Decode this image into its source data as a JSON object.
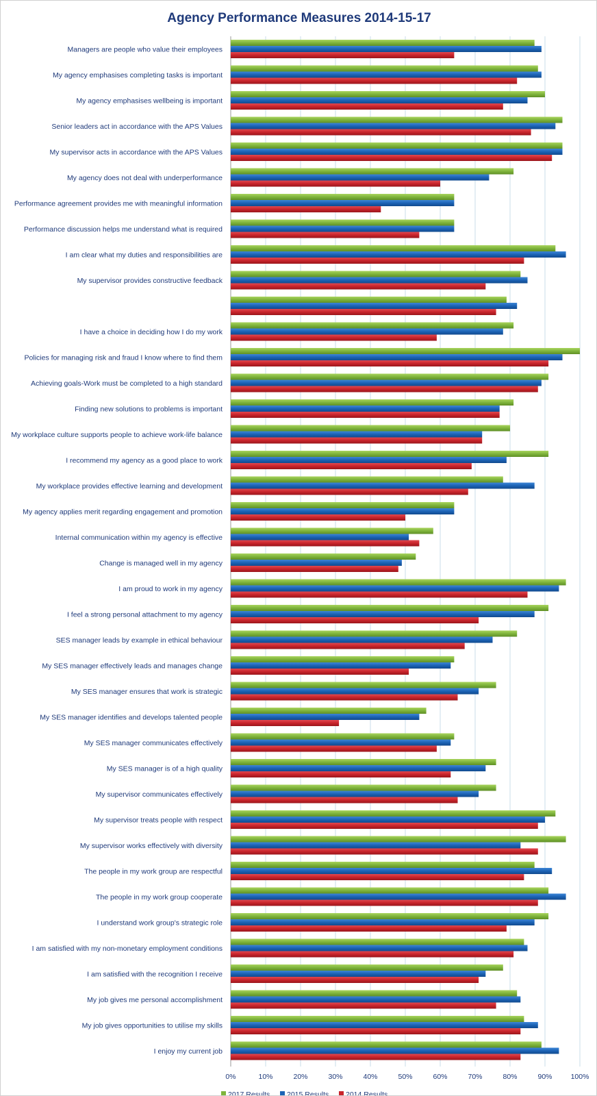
{
  "chart_data": {
    "type": "bar",
    "orientation": "horizontal",
    "title": "Agency Performance Measures 2014-15-17",
    "xlabel": "",
    "ylabel": "",
    "xlim": [
      0,
      100
    ],
    "x_ticks": [
      "0%",
      "10%",
      "20%",
      "30%",
      "40%",
      "50%",
      "60%",
      "70%",
      "80%",
      "90%",
      "100%"
    ],
    "grid": true,
    "legend_position": "bottom",
    "categories": [
      "Managers are people who value their employees",
      "My agency emphasises completing tasks is important",
      "My agency emphasises wellbeing is important",
      "Senior leaders act in accordance with the APS Values",
      "My supervisor acts in accordance with the APS Values",
      "My agency does not deal with underperformance",
      "Performance agreement provides me with meaningful information",
      "Performance discussion helps me understand what is required",
      "I am clear what my duties and responsibilities are",
      "My supervisor provides constructive feedback",
      "",
      "I have a choice in deciding how I do my work",
      "Policies for managing risk and fraud I know where to find them",
      "Achieving goals-Work must be completed to a high standard",
      "Finding new solutions to problems is important",
      "My workplace culture supports people to achieve work-life balance",
      "I recommend my agency as a good place to work",
      "My workplace provides effective learning and development",
      "My agency applies merit regarding engagement and promotion",
      "Internal communication within my agency is effective",
      "Change is managed well in my agency",
      "I am proud to work in my agency",
      "I feel a strong personal attachment to my agency",
      "SES manager leads by example in ethical behaviour",
      "My SES manager effectively leads and manages change",
      "My SES manager ensures that work is strategic",
      "My SES manager identifies and develops talented people",
      "My SES manager communicates effectively",
      "My SES manager is of a high quality",
      "My supervisor communicates effectively ",
      "My supervisor treats people with respect",
      "My supervisor works effectively with diversity",
      "The people in my work group are respectful",
      "The people in my work group cooperate",
      "I understand work group's strategic role",
      "I am satisfied with my non-monetary employment conditions",
      "I am satisfied with the recognition I receive",
      "My job gives me personal accomplishment",
      "My job gives opportunities to utilise my skills",
      "I enjoy my current job"
    ],
    "series": [
      {
        "name": "2017 Results",
        "color": "#7fb43c",
        "values": [
          87,
          88,
          90,
          95,
          95,
          81,
          64,
          64,
          93,
          83,
          79,
          81,
          100,
          91,
          81,
          80,
          91,
          78,
          64,
          58,
          53,
          96,
          91,
          82,
          64,
          76,
          56,
          64,
          76,
          76,
          93,
          96,
          87,
          91,
          91,
          84,
          78,
          82,
          84,
          89
        ]
      },
      {
        "name": "2015 Results",
        "color": "#1c63b5",
        "values": [
          89,
          89,
          85,
          93,
          95,
          74,
          64,
          64,
          96,
          85,
          82,
          78,
          95,
          89,
          77,
          72,
          79,
          87,
          64,
          51,
          49,
          94,
          87,
          75,
          63,
          71,
          54,
          63,
          73,
          71,
          90,
          83,
          92,
          96,
          87,
          85,
          73,
          83,
          88,
          94
        ]
      },
      {
        "name": "2014 Results",
        "color": "#c8242b",
        "values": [
          64,
          82,
          78,
          86,
          92,
          60,
          43,
          54,
          84,
          73,
          76,
          59,
          91,
          88,
          77,
          72,
          69,
          68,
          50,
          54,
          48,
          85,
          71,
          67,
          51,
          65,
          31,
          59,
          63,
          65,
          88,
          88,
          84,
          88,
          79,
          81,
          71,
          76,
          83,
          83
        ]
      }
    ]
  }
}
